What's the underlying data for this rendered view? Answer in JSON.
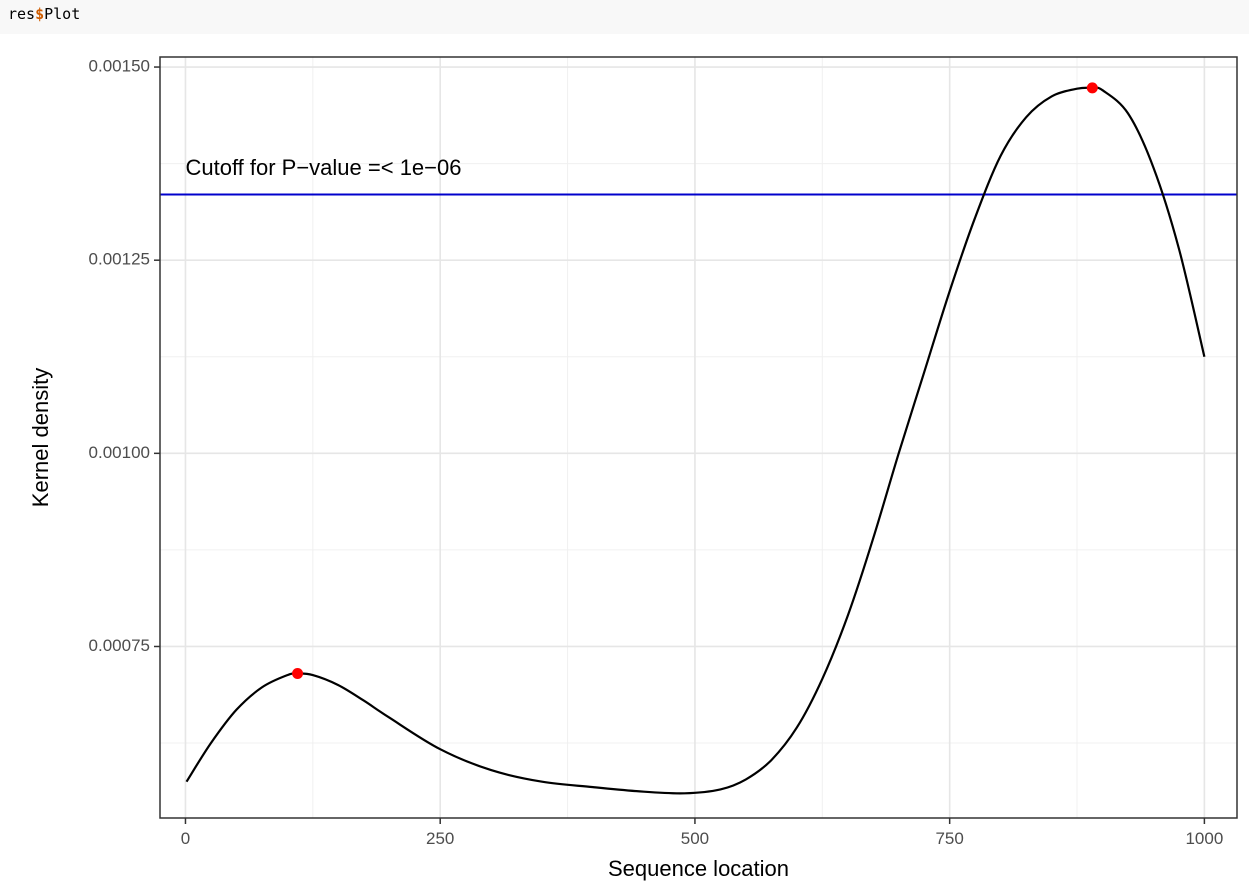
{
  "code": {
    "object": "res",
    "operator": "$",
    "member": "Plot"
  },
  "chart_data": {
    "type": "line",
    "title": "",
    "xlabel": "Sequence location",
    "ylabel": "Kernel density",
    "xlim": [
      -25,
      1032
    ],
    "ylim": [
      0.000528,
      0.001513
    ],
    "x_ticks": [
      0,
      250,
      500,
      750,
      1000
    ],
    "x_tick_labels": [
      "0",
      "250",
      "500",
      "750",
      "1000"
    ],
    "y_ticks": [
      0.00075,
      0.001,
      0.00125,
      0.0015
    ],
    "y_tick_labels": [
      "0.00075",
      "0.00100",
      "0.00125",
      "0.00150"
    ],
    "grid": true,
    "series": [
      {
        "x": [
          1,
          25,
          50,
          75,
          100,
          110,
          125,
          150,
          175,
          200,
          250,
          300,
          350,
          400,
          450,
          490,
          525,
          550,
          575,
          600,
          625,
          650,
          675,
          700,
          725,
          750,
          775,
          800,
          825,
          850,
          875,
          890,
          900,
          925,
          950,
          975,
          1000
        ],
        "y": [
          0.000575,
          0.000625,
          0.000668,
          0.000697,
          0.000713,
          0.000715,
          0.000713,
          0.0007,
          0.00068,
          0.000658,
          0.000617,
          0.00059,
          0.000575,
          0.000568,
          0.000562,
          0.00056,
          0.000565,
          0.000578,
          0.000603,
          0.000645,
          0.000708,
          0.00079,
          0.00089,
          0.001,
          0.001105,
          0.00121,
          0.001305,
          0.001385,
          0.001435,
          0.001462,
          0.001472,
          0.001473,
          0.00147,
          0.00144,
          0.00137,
          0.001265,
          0.001125
        ],
        "color": "#000000"
      }
    ],
    "peaks": [
      {
        "x": 110,
        "y": 0.000715
      },
      {
        "x": 890,
        "y": 0.001473
      }
    ],
    "peak_color": "#ff0000",
    "cutoff": {
      "y": 0.001335,
      "label": "Cutoff for P−value =< 1e−06",
      "label_x": 0,
      "label_y": 0.001368,
      "color": "#0000cc"
    }
  }
}
